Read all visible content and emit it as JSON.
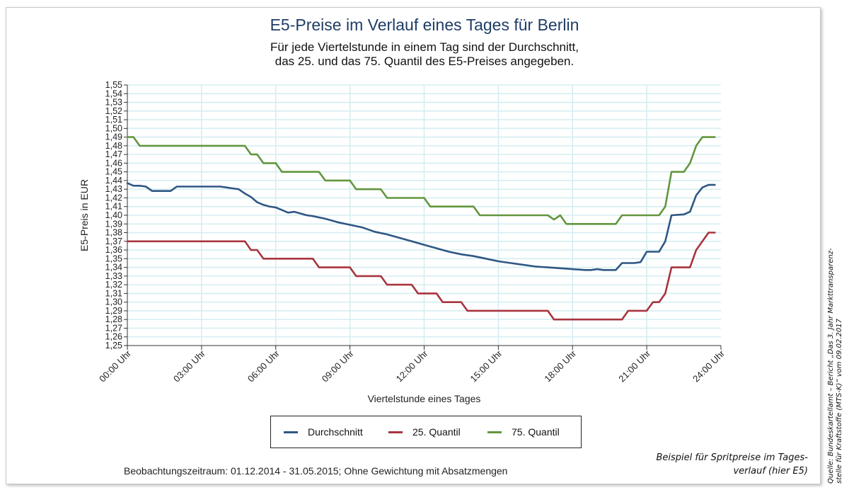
{
  "page": {
    "caption_line1": "Beispiel für Spritpreise im Tages-",
    "caption_line2": "verlauf (hier E5)",
    "source_line1": "Quelle: Bundeskartellamt – Bericht „Das 3. Jahr Markttransparenz-",
    "source_line2": "stelle für Kraftstoffe (MTS-K)“ vom 09.02.2017"
  },
  "chart_data": {
    "type": "line",
    "title": "E5-Preise im Verlauf eines Tages für Berlin",
    "subtitle_line1": "Für jede Viertelstunde in einem Tag sind der Durchschnitt,",
    "subtitle_line2": "das 25. und das 75. Quantil des E5-Preises angegeben.",
    "xlabel": "Viertelstunde eines Tages",
    "ylabel": "E5-Preis in EUR",
    "footnote": "Beobachtungszeitraum: 01.12.2014 - 31.05.2015; Ohne Gewichtung mit Absatzmengen",
    "x_unit": "hours",
    "xlim": [
      0,
      24
    ],
    "ylim": [
      1.25,
      1.55
    ],
    "x_ticks": [
      0,
      3,
      6,
      9,
      12,
      15,
      18,
      21,
      24
    ],
    "x_tick_labels": [
      "00:00 Uhr",
      "03:00 Uhr",
      "06:00 Uhr",
      "09:00 Uhr",
      "12:00 Uhr",
      "15:00 Uhr",
      "18:00 Uhr",
      "21:00 Uhr",
      "24:00 Uhr"
    ],
    "y_tick_labels": [
      "1,25",
      "1,26",
      "1,27",
      "1,28",
      "1,29",
      "1,30",
      "1,31",
      "1,32",
      "1,33",
      "1,34",
      "1,35",
      "1,36",
      "1,37",
      "1,38",
      "1,39",
      "1,40",
      "1,41",
      "1,42",
      "1,43",
      "1,44",
      "1,45",
      "1,46",
      "1,47",
      "1,48",
      "1,49",
      "1,50",
      "1,51",
      "1,52",
      "1,53",
      "1,54",
      "1,55"
    ],
    "grid": true,
    "legend_position": "bottom",
    "series": [
      {
        "name": "Durchschnitt",
        "color": "#2f5784",
        "x": [
          0,
          0.25,
          0.5,
          0.75,
          1.0,
          1.25,
          1.5,
          1.75,
          2.0,
          2.25,
          3.0,
          3.75,
          4.0,
          4.25,
          4.5,
          4.75,
          5.0,
          5.25,
          5.5,
          5.75,
          6.0,
          6.25,
          6.5,
          6.75,
          7.0,
          7.25,
          7.5,
          8.0,
          8.5,
          9.0,
          9.5,
          10.0,
          10.5,
          11.0,
          11.5,
          12.0,
          12.5,
          13.0,
          13.5,
          14.0,
          14.5,
          15.0,
          15.5,
          16.0,
          16.5,
          17.0,
          17.5,
          18.0,
          18.5,
          18.75,
          19.0,
          19.25,
          19.5,
          19.75,
          20.0,
          20.25,
          20.5,
          20.75,
          21.0,
          21.25,
          21.5,
          21.75,
          22.0,
          22.5,
          22.75,
          23.0,
          23.25,
          23.5,
          23.75
        ],
        "y": [
          1.437,
          1.434,
          1.434,
          1.433,
          1.428,
          1.428,
          1.428,
          1.428,
          1.433,
          1.433,
          1.433,
          1.433,
          1.432,
          1.431,
          1.43,
          1.425,
          1.421,
          1.415,
          1.412,
          1.41,
          1.409,
          1.406,
          1.403,
          1.404,
          1.402,
          1.4,
          1.399,
          1.396,
          1.392,
          1.389,
          1.386,
          1.381,
          1.378,
          1.374,
          1.37,
          1.366,
          1.362,
          1.358,
          1.355,
          1.353,
          1.35,
          1.347,
          1.345,
          1.343,
          1.341,
          1.34,
          1.339,
          1.338,
          1.337,
          1.337,
          1.338,
          1.337,
          1.337,
          1.337,
          1.345,
          1.345,
          1.345,
          1.346,
          1.358,
          1.358,
          1.358,
          1.37,
          1.4,
          1.401,
          1.404,
          1.423,
          1.432,
          1.435,
          1.435
        ]
      },
      {
        "name": "25. Quantil",
        "color": "#a8343f",
        "x": [
          0,
          4.75,
          5.0,
          5.25,
          5.5,
          5.75,
          6.0,
          7.5,
          7.75,
          8.0,
          8.5,
          9.0,
          9.25,
          9.5,
          10.0,
          10.25,
          10.5,
          10.75,
          11.0,
          11.25,
          11.5,
          11.75,
          12.0,
          12.25,
          12.5,
          12.75,
          13.0,
          13.25,
          13.5,
          13.75,
          14.0,
          14.25,
          14.5,
          14.75,
          15.0,
          17.0,
          17.25,
          17.5,
          20.0,
          20.25,
          20.5,
          21.0,
          21.25,
          21.5,
          21.75,
          22.0,
          22.25,
          22.5,
          22.75,
          23.0,
          23.25,
          23.5,
          23.75
        ],
        "y": [
          1.37,
          1.37,
          1.36,
          1.36,
          1.35,
          1.35,
          1.35,
          1.35,
          1.34,
          1.34,
          1.34,
          1.34,
          1.33,
          1.33,
          1.33,
          1.33,
          1.32,
          1.32,
          1.32,
          1.32,
          1.32,
          1.31,
          1.31,
          1.31,
          1.31,
          1.3,
          1.3,
          1.3,
          1.3,
          1.29,
          1.29,
          1.29,
          1.29,
          1.29,
          1.29,
          1.29,
          1.28,
          1.28,
          1.28,
          1.29,
          1.29,
          1.29,
          1.3,
          1.3,
          1.31,
          1.34,
          1.34,
          1.34,
          1.34,
          1.36,
          1.37,
          1.38,
          1.38
        ]
      },
      {
        "name": "75. Quantil",
        "color": "#62963f",
        "x": [
          0,
          0.25,
          0.5,
          4.75,
          5.0,
          5.25,
          5.5,
          5.75,
          6.0,
          6.25,
          7.5,
          7.75,
          8.0,
          8.5,
          9.0,
          9.25,
          9.5,
          10.0,
          10.25,
          10.5,
          10.75,
          11.0,
          11.5,
          12.0,
          12.25,
          12.5,
          13.0,
          13.5,
          14.0,
          14.25,
          14.5,
          15.0,
          15.5,
          16.0,
          16.5,
          17.0,
          17.25,
          17.5,
          17.75,
          18.0,
          19.75,
          20.0,
          20.25,
          20.5,
          21.0,
          21.25,
          21.5,
          21.75,
          22.0,
          22.25,
          22.5,
          22.75,
          23.0,
          23.25,
          23.5,
          23.75
        ],
        "y": [
          1.49,
          1.49,
          1.48,
          1.48,
          1.47,
          1.47,
          1.46,
          1.46,
          1.46,
          1.45,
          1.45,
          1.45,
          1.44,
          1.44,
          1.44,
          1.43,
          1.43,
          1.43,
          1.43,
          1.42,
          1.42,
          1.42,
          1.42,
          1.42,
          1.41,
          1.41,
          1.41,
          1.41,
          1.41,
          1.4,
          1.4,
          1.4,
          1.4,
          1.4,
          1.4,
          1.4,
          1.395,
          1.4,
          1.39,
          1.39,
          1.39,
          1.4,
          1.4,
          1.4,
          1.4,
          1.4,
          1.4,
          1.41,
          1.45,
          1.45,
          1.45,
          1.46,
          1.48,
          1.49,
          1.49,
          1.49
        ]
      }
    ]
  }
}
